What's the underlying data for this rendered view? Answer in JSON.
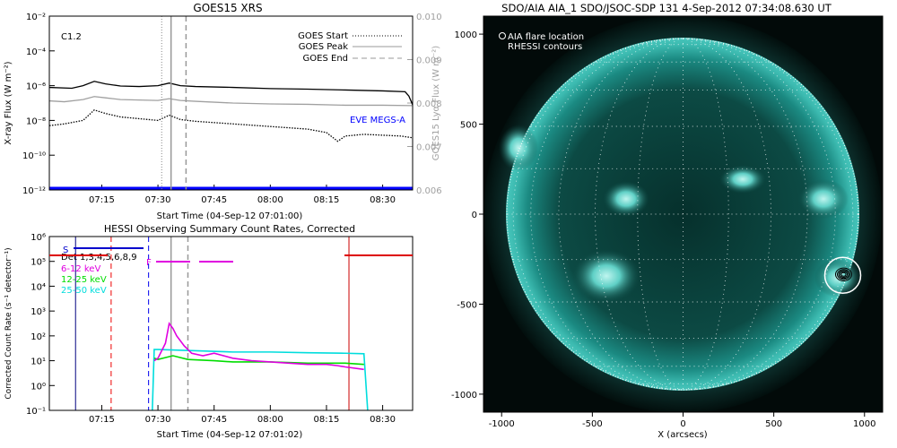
{
  "chart_data": [
    {
      "type": "line",
      "title": "GOES15 XRS",
      "xlabel": "Start Time (04-Sep-12 07:01:00)",
      "ylabel": "X-ray Flux (W m⁻²)",
      "y2label": "GOES15 Lyα Flux (W m⁻²)",
      "xtick_labels": [
        "07:15",
        "07:30",
        "07:45",
        "08:00",
        "08:15",
        "08:30"
      ],
      "xticks_min": [
        15,
        30,
        45,
        60,
        75,
        90
      ],
      "xlim_min": [
        1,
        98
      ],
      "ylim_log": [
        -12,
        -2
      ],
      "ytick_labels": [
        "10⁻²",
        "10⁻⁴",
        "10⁻⁶",
        "10⁻⁸",
        "10⁻¹⁰",
        "10⁻¹²"
      ],
      "ytick_exps": [
        -2,
        -4,
        -6,
        -8,
        -10,
        -12
      ],
      "y2lim": [
        0.006,
        0.01
      ],
      "y2tick_labels": [
        "0.010",
        "0.009",
        "0.008",
        "0.007",
        "0.006"
      ],
      "y2tick_vals": [
        0.01,
        0.009,
        0.008,
        0.007,
        0.006
      ],
      "flare_class": "C1.2",
      "legend": [
        "GOES Start",
        "GOES Peak",
        "GOES End"
      ],
      "legend_position": "top-right",
      "eve_label": "EVE MEGS-A",
      "event_lines_min": {
        "start": 31,
        "peak": 33.5,
        "end": 37.5
      },
      "series": [
        {
          "name": "long",
          "color": "#000000",
          "x": [
            1,
            7,
            10,
            13,
            16,
            20,
            25,
            30,
            33,
            36,
            40,
            50,
            60,
            70,
            80,
            90,
            96,
            97,
            98
          ],
          "log_y": [
            -6.1,
            -6.15,
            -6.0,
            -5.75,
            -5.9,
            -6.02,
            -6.05,
            -6.0,
            -5.85,
            -6.0,
            -6.05,
            -6.1,
            -6.17,
            -6.2,
            -6.25,
            -6.3,
            -6.35,
            -6.6,
            -7.1
          ]
        },
        {
          "name": "short",
          "color": "#000000",
          "dotted": true,
          "x": [
            1,
            5,
            10,
            13,
            16,
            20,
            25,
            30,
            33,
            36,
            40,
            50,
            60,
            70,
            75,
            78,
            80,
            85,
            90,
            95,
            98
          ],
          "log_y": [
            -8.3,
            -8.2,
            -8.0,
            -7.4,
            -7.6,
            -7.8,
            -7.9,
            -8.0,
            -7.7,
            -7.95,
            -8.05,
            -8.2,
            -8.35,
            -8.5,
            -8.7,
            -9.2,
            -8.9,
            -8.8,
            -8.85,
            -8.9,
            -9.0
          ]
        },
        {
          "name": "lya",
          "color": "#a0a0a0",
          "x": [
            1,
            5,
            10,
            13,
            16,
            20,
            30,
            33,
            36,
            40,
            50,
            60,
            70,
            80,
            90,
            98
          ],
          "y2": [
            0.00805,
            0.00803,
            0.00808,
            0.00815,
            0.00812,
            0.00808,
            0.00806,
            0.0081,
            0.00806,
            0.00804,
            0.008,
            0.00798,
            0.00797,
            0.00795,
            0.00795,
            0.00794
          ]
        },
        {
          "name": "eve",
          "color": "#0000ff",
          "x": [
            1,
            98
          ],
          "log_y": [
            -11.9,
            -11.9
          ]
        }
      ]
    },
    {
      "type": "line",
      "title": "HESSI Observing Summary Count Rates, Corrected",
      "xlabel": "Start Time (04-Sep-12 07:01:02)",
      "ylabel": "Corrected Count Rate (s⁻¹ detector⁻¹)",
      "xtick_labels": [
        "07:15",
        "07:30",
        "07:45",
        "08:00",
        "08:15",
        "08:30"
      ],
      "xticks_min": [
        15,
        30,
        45,
        60,
        75,
        90
      ],
      "xlim_min": [
        1,
        98
      ],
      "ylim_log": [
        -1,
        6
      ],
      "ytick_labels": [
        "10⁶",
        "10⁵",
        "10⁴",
        "10³",
        "10²",
        "10¹",
        "10⁰",
        "10⁻¹"
      ],
      "ytick_exps": [
        6,
        5,
        4,
        3,
        2,
        1,
        0,
        -1
      ],
      "annotations": {
        "s_label": "S",
        "f_label": "F",
        "detectors": "Det 1,3,4,5,6,8,9"
      },
      "legend": [
        {
          "label": "6-12 keV",
          "color": "#e000e0"
        },
        {
          "label": "12-25 keV",
          "color": "#00dd00"
        },
        {
          "label": "25-50 keV",
          "color": "#00dddd"
        }
      ],
      "markers_min": {
        "night_end": 8,
        "night_start": 81,
        "saa_red": 17.5,
        "saa_blue": 27.5,
        "event_peak": 33.5,
        "event_end": 38
      },
      "series": [
        {
          "name": "25-50 keV",
          "color": "#00dddd",
          "x": [
            28.5,
            29,
            30,
            40,
            50,
            60,
            70,
            80,
            85,
            86
          ],
          "log_y": [
            -1,
            1.45,
            1.45,
            1.4,
            1.35,
            1.35,
            1.32,
            1.3,
            1.28,
            -1
          ]
        },
        {
          "name": "12-25 keV",
          "color": "#00dd00",
          "x": [
            29,
            30,
            34,
            38,
            45,
            50,
            60,
            70,
            80,
            85
          ],
          "log_y": [
            1.1,
            1.05,
            1.2,
            1.05,
            1.0,
            0.95,
            0.95,
            0.9,
            0.9,
            0.85
          ]
        },
        {
          "name": "6-12 keV",
          "color": "#e000e0",
          "x": [
            29,
            30,
            32,
            33,
            34,
            35,
            37,
            39,
            42,
            45,
            50,
            55,
            60,
            70,
            75,
            78,
            80,
            85
          ],
          "log_y": [
            1.0,
            1.1,
            1.7,
            2.5,
            2.3,
            2.0,
            1.6,
            1.3,
            1.2,
            1.3,
            1.1,
            1.0,
            0.95,
            0.85,
            0.85,
            0.8,
            0.75,
            0.65
          ]
        }
      ]
    },
    {
      "type": "image",
      "title": "SDO/AIA AIA_1 SDO/JSOC-SDP 131  4-Sep-2012 07:34:08.630 UT",
      "xlabel": "X (arcsecs)",
      "ylabel": "",
      "xlim": [
        -1100,
        1100
      ],
      "ylim": [
        -1100,
        1100
      ],
      "xtick_labels": [
        "-1000",
        "-500",
        "0",
        "500",
        "1000"
      ],
      "xticks": [
        -1000,
        -500,
        0,
        500,
        1000
      ],
      "ytick_labels": [
        "1000",
        "500",
        "0",
        "-500",
        "-1000"
      ],
      "yticks": [
        1000,
        500,
        0,
        -500,
        -1000
      ],
      "legend": [
        "AIA flare location",
        "RHESSI contours"
      ],
      "flare_location_arcsec": [
        880,
        -340
      ]
    }
  ]
}
